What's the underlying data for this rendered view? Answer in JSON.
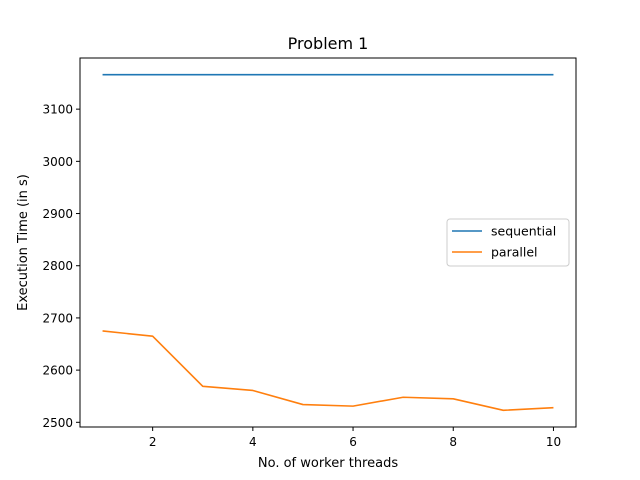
{
  "chart_data": {
    "type": "line",
    "title": "Problem 1",
    "xlabel": "No. of worker threads",
    "ylabel": "Execution Time (in s)",
    "x": [
      1,
      2,
      3,
      4,
      5,
      6,
      7,
      8,
      9,
      10
    ],
    "series": [
      {
        "name": "sequential",
        "color": "#1f77b4",
        "values": [
          3166,
          3166,
          3166,
          3166,
          3166,
          3166,
          3166,
          3166,
          3166,
          3166
        ]
      },
      {
        "name": "parallel",
        "color": "#ff7f0e",
        "values": [
          2675,
          2665,
          2569,
          2561,
          2534,
          2531,
          2548,
          2545,
          2523,
          2528
        ]
      }
    ],
    "xlim": [
      0.55,
      10.45
    ],
    "ylim": [
      2491,
      3198
    ],
    "xticks": [
      2,
      4,
      6,
      8,
      10
    ],
    "yticks": [
      2500,
      2600,
      2700,
      2800,
      2900,
      3000,
      3100
    ],
    "grid": false,
    "legend_position": "center-right"
  }
}
